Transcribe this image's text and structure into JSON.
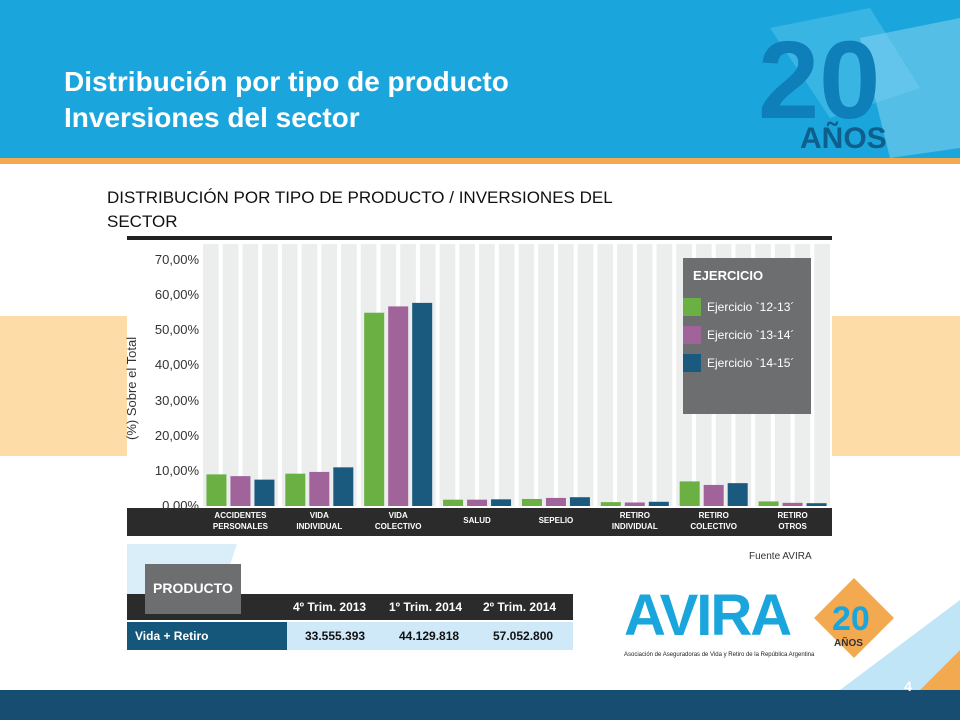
{
  "header": {
    "title_line1": "Distribución por tipo de producto",
    "title_line2": "Inversiones del sector",
    "logo_number": "20",
    "logo_word": "AÑOS"
  },
  "subtitle": "DISTRIBUCIÓN POR TIPO DE PRODUCTO / INVERSIONES DEL SECTOR",
  "chart_data": {
    "type": "bar",
    "ylabel": "(%) Sobre el Total",
    "ylim": [
      0,
      70
    ],
    "yticks": [
      "70,00%",
      "60,00%",
      "50,00%",
      "40,00%",
      "30,00%",
      "20,00%",
      "10,00%",
      "0,00%"
    ],
    "categories": [
      [
        "ACCIDENTES",
        "PERSONALES"
      ],
      [
        "VIDA",
        "INDIVIDUAL"
      ],
      [
        "VIDA",
        "COLECTIVO"
      ],
      [
        "SALUD",
        ""
      ],
      [
        "SEPELIO",
        ""
      ],
      [
        "RETIRO",
        "INDIVIDUAL"
      ],
      [
        "RETIRO",
        "COLECTIVO"
      ],
      [
        "RETIRO",
        "OTROS"
      ]
    ],
    "legend_title": "EJERCICIO",
    "legend_position": "top-right",
    "series": [
      {
        "name": "Ejercicio `12-13´",
        "color": "#6ab042",
        "values": [
          9.0,
          9.2,
          55.0,
          1.8,
          2.0,
          1.1,
          7.0,
          1.3
        ]
      },
      {
        "name": "Ejercicio `13-14´",
        "color": "#a0649b",
        "values": [
          8.5,
          9.7,
          56.8,
          1.8,
          2.3,
          1.0,
          6.0,
          0.9
        ]
      },
      {
        "name": "Ejercicio `14-15´",
        "color": "#1a5a7e",
        "values": [
          7.5,
          11.0,
          57.8,
          1.9,
          2.5,
          1.2,
          6.5,
          0.8
        ]
      }
    ]
  },
  "source": "Fuente AVIRA",
  "table": {
    "producto_label": "PRODUCTO",
    "headers": [
      "4º Trim. 2013",
      "1º Trim. 2014",
      "2º Trim. 2014"
    ],
    "row_label": "Vida + Retiro",
    "values": [
      "33.555.393",
      "44.129.818",
      "57.052.800"
    ]
  },
  "avira_logo": {
    "name": "AVIRA",
    "years": "20",
    "years_word": "AÑOS",
    "tagline": "Asociación de Aseguradoras de Vida y Retiro de la República Argentina"
  },
  "page_number": "4",
  "colors": {
    "header_blue": "#1aa6dc",
    "accent_orange": "#f2a950",
    "footer_navy": "#184d72"
  }
}
